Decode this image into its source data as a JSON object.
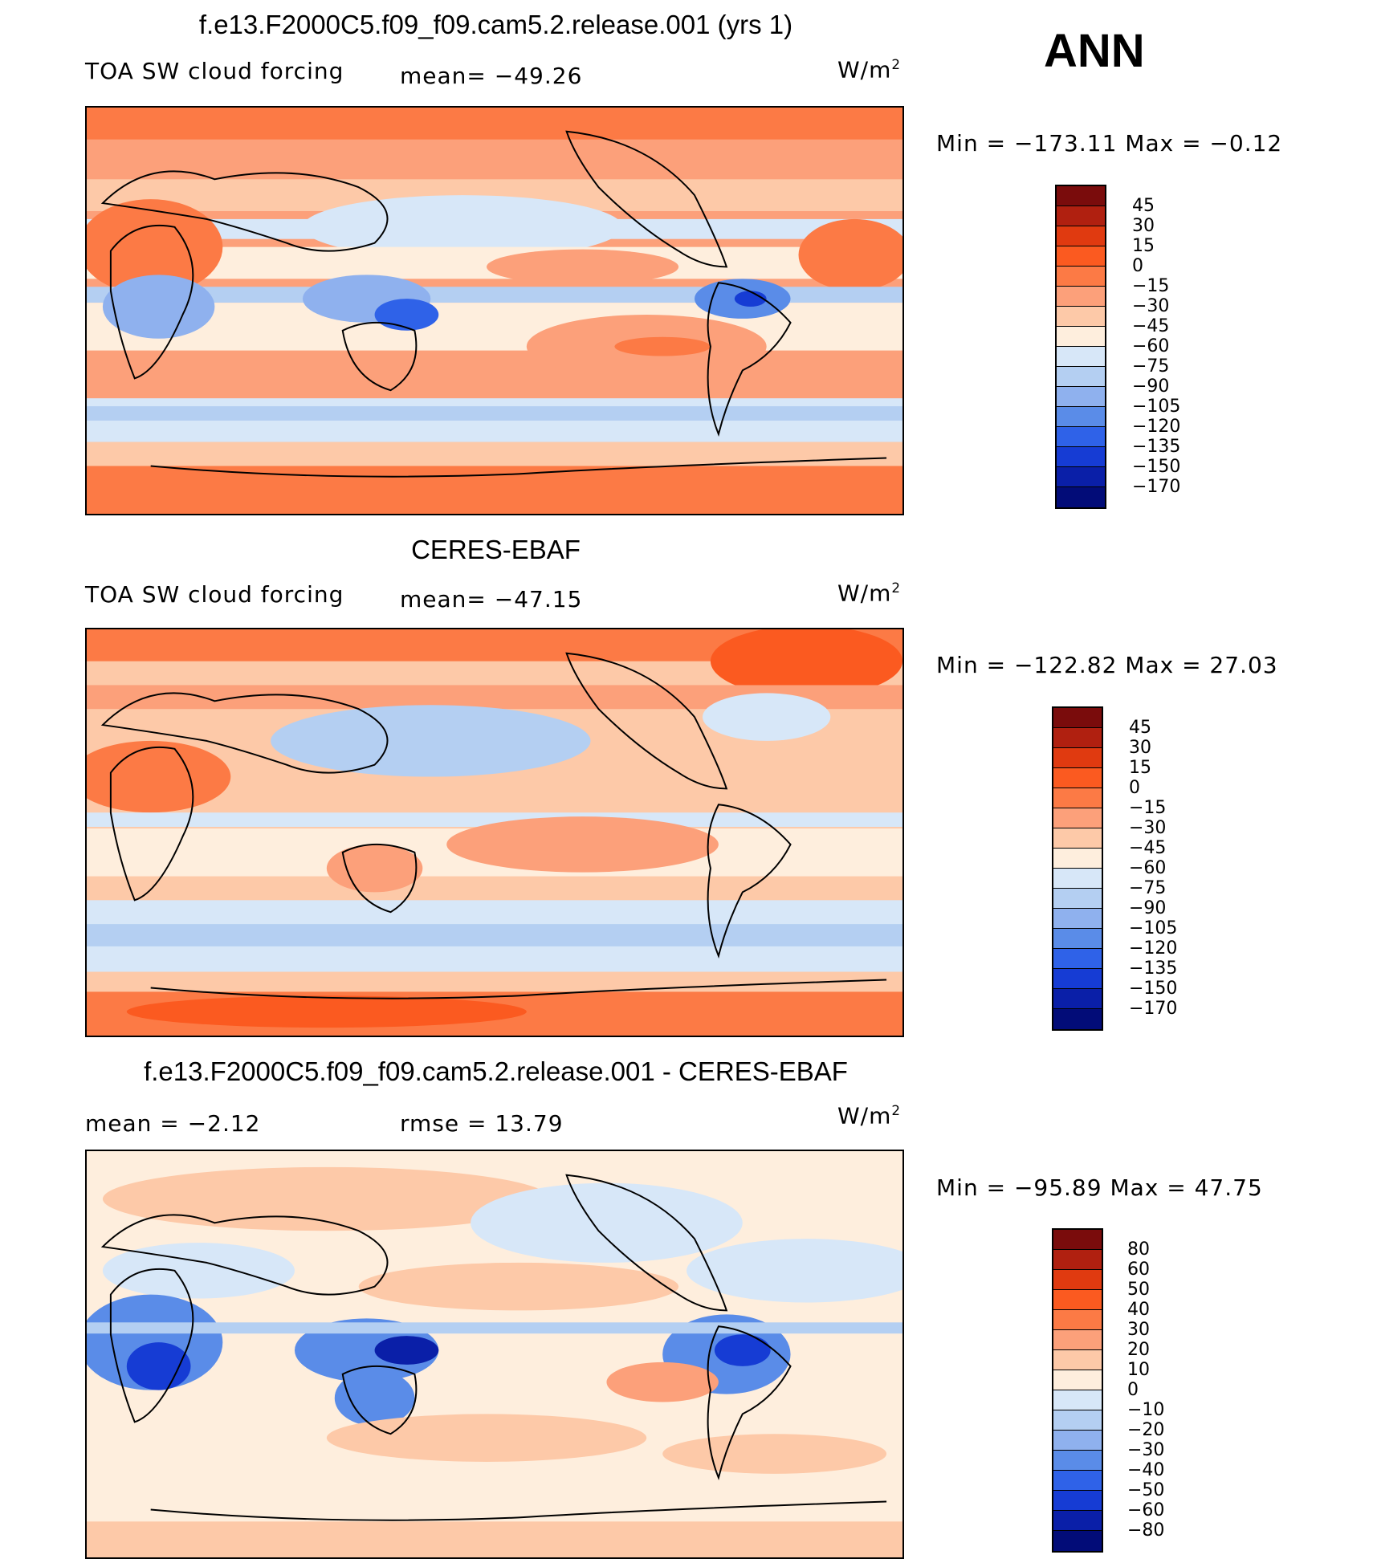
{
  "season": "ANN",
  "units": "W/m",
  "units_sup": "2",
  "panels": [
    {
      "title": "f.e13.F2000C5.f09_f09.cam5.2.release.001 (yrs 1)",
      "variable": "TOA SW cloud forcing",
      "mean_text": "mean= −49.26",
      "min_max": "Min = −173.11 Max =   −0.12",
      "levels": [
        "45",
        "30",
        "15",
        "0",
        "−15",
        "−30",
        "−45",
        "−60",
        "−75",
        "−90",
        "−105",
        "−120",
        "−135",
        "−150",
        "−170"
      ]
    },
    {
      "title": "CERES-EBAF",
      "variable": "TOA SW cloud forcing",
      "mean_text": "mean= −47.15",
      "min_max": "Min = −122.82 Max =   27.03",
      "levels": [
        "45",
        "30",
        "15",
        "0",
        "−15",
        "−30",
        "−45",
        "−60",
        "−75",
        "−90",
        "−105",
        "−120",
        "−135",
        "−150",
        "−170"
      ]
    },
    {
      "title": "f.e13.F2000C5.f09_f09.cam5.2.release.001 - CERES-EBAF",
      "mean_text": "mean =   −2.12",
      "rmse_text": "rmse =   13.79",
      "min_max": "Min = −95.89 Max =   47.75",
      "levels": [
        "80",
        "60",
        "50",
        "40",
        "30",
        "20",
        "10",
        "0",
        "−10",
        "−20",
        "−30",
        "−40",
        "−50",
        "−60",
        "−80"
      ]
    }
  ],
  "colors": {
    "palette": [
      "#7a0c0c",
      "#b02010",
      "#e03a10",
      "#fb5a20",
      "#fc7a45",
      "#fca07a",
      "#fdc9a8",
      "#feeedd",
      "#d7e7f8",
      "#b4cff2",
      "#8fb1ee",
      "#5a8ce8",
      "#2f62e8",
      "#163cd4",
      "#0a1fa8",
      "#020c78"
    ]
  }
}
